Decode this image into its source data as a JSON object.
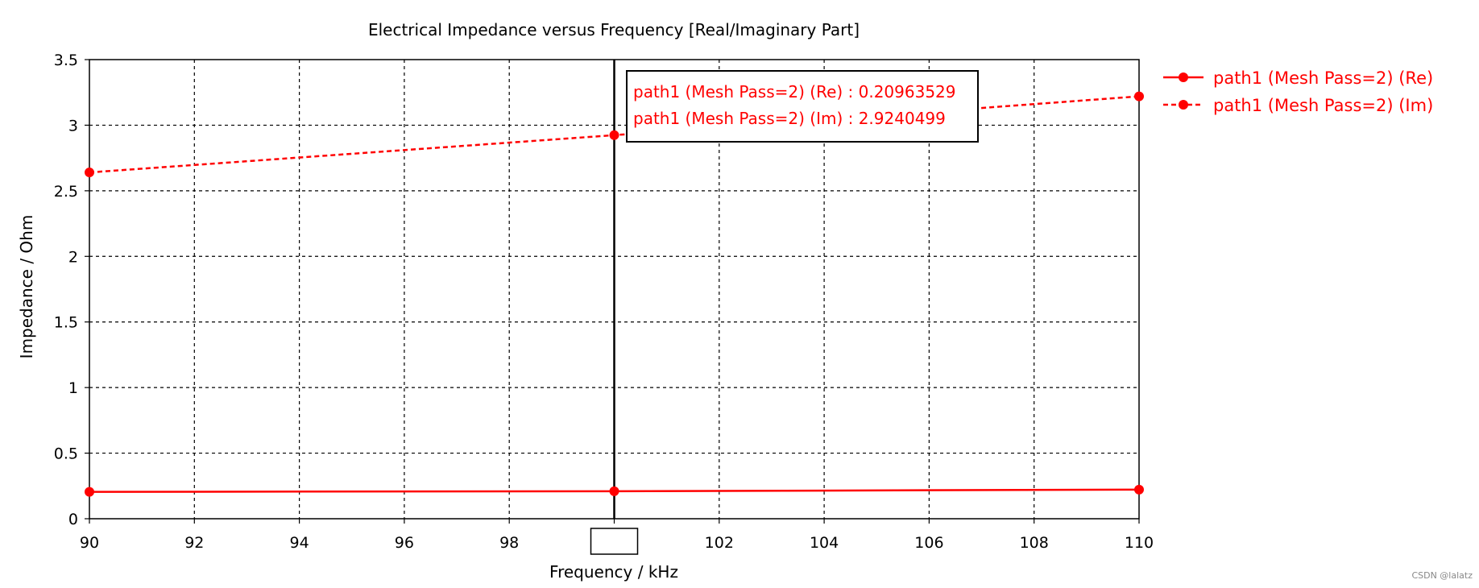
{
  "chart_data": {
    "type": "line",
    "title": "Electrical Impedance versus Frequency [Real/Imaginary Part]",
    "xlabel": "Frequency / kHz",
    "ylabel": "Impedance / Ohm",
    "xlim": [
      90,
      110
    ],
    "ylim": [
      0,
      3.5
    ],
    "xticks": [
      90,
      92,
      94,
      96,
      98,
      100,
      102,
      104,
      106,
      108,
      110
    ],
    "xtick_labels": [
      "90",
      "92",
      "94",
      "96",
      "98",
      "100",
      "102",
      "104",
      "106",
      "108",
      "110"
    ],
    "yticks": [
      0,
      0.5,
      1,
      1.5,
      2,
      2.5,
      3,
      3.5
    ],
    "ytick_labels": [
      "0",
      "0.5",
      "1",
      "1.5",
      "2",
      "2.5",
      "3",
      "3.5"
    ],
    "grid": true,
    "legend_position": "right",
    "marker_x": 100,
    "series": [
      {
        "name": "path1 (Mesh Pass=2) (Re)",
        "x": [
          90,
          100,
          110
        ],
        "y": [
          0.205,
          0.2096,
          0.222
        ],
        "style": "solid",
        "color": "#ff0000"
      },
      {
        "name": "path1 (Mesh Pass=2) (Im)",
        "x": [
          90,
          100,
          110
        ],
        "y": [
          2.64,
          2.924,
          3.22
        ],
        "style": "dashed",
        "color": "#ff0000"
      }
    ],
    "tooltip": {
      "lines": [
        "path1 (Mesh Pass=2) (Re) : 0.20963529",
        "path1 (Mesh Pass=2) (Im) : 2.9240499"
      ]
    }
  },
  "watermark": "CSDN @lalatz",
  "colors": {
    "series": "#ff0000",
    "axis": "#000000",
    "grid": "#000000"
  }
}
